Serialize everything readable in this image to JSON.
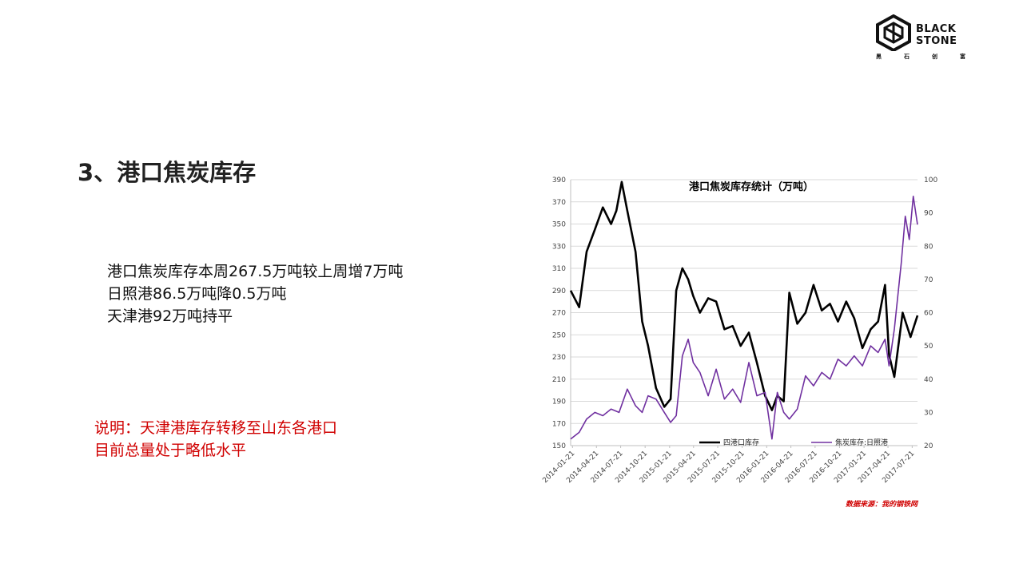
{
  "logo": {
    "icon": "hexagon-logo-icon",
    "line1": "BLACK",
    "line2": "STONE",
    "sub": [
      "黑",
      "石",
      "创",
      "富"
    ]
  },
  "slide": {
    "title": "3、港口焦炭库存",
    "summary_lines": [
      "港口焦炭库存本周267.5万吨较上周增7万吨",
      "日照港86.5万吨降0.5万吨",
      "天津港92万吨持平"
    ],
    "note_lines": [
      "说明：天津港库存转移至山东各港口",
      "目前总量处于略低水平"
    ],
    "source": "数据来源：我的钢铁网"
  },
  "colors": {
    "series1": "#000000",
    "series2": "#7030a0",
    "note": "#d00000",
    "grid": "#d9d9d9"
  },
  "chart_data": {
    "type": "line",
    "title": "港口焦炭库存统计（万吨）",
    "x_ticks": [
      "2014-01-21",
      "2014-04-21",
      "2014-07-21",
      "2014-10-21",
      "2015-01-21",
      "2015-04-21",
      "2015-07-21",
      "2015-10-21",
      "2016-01-21",
      "2016-04-21",
      "2016-07-21",
      "2016-10-21",
      "2017-01-21",
      "2017-04-21",
      "2017-07-21"
    ],
    "y_left": {
      "min": 150,
      "max": 390,
      "ticks": [
        150,
        170,
        190,
        210,
        230,
        250,
        270,
        290,
        310,
        330,
        350,
        370,
        390
      ]
    },
    "y_right": {
      "min": 20,
      "max": 100,
      "ticks": [
        20,
        30,
        40,
        50,
        60,
        70,
        80,
        90,
        100
      ]
    },
    "grid": true,
    "legend_position": "bottom-inside",
    "series": [
      {
        "name": "四港口库存",
        "axis": "left",
        "color": "#000000",
        "x": [
          "2014-01-14",
          "2014-02-15",
          "2014-03-15",
          "2014-04-15",
          "2014-05-15",
          "2014-06-15",
          "2014-07-05",
          "2014-07-25",
          "2014-08-15",
          "2014-09-15",
          "2014-10-10",
          "2014-11-01",
          "2014-12-01",
          "2015-01-01",
          "2015-01-25",
          "2015-02-15",
          "2015-03-10",
          "2015-04-01",
          "2015-04-20",
          "2015-05-15",
          "2015-06-15",
          "2015-07-15",
          "2015-08-15",
          "2015-09-15",
          "2015-10-15",
          "2015-11-15",
          "2015-12-15",
          "2016-01-15",
          "2016-02-10",
          "2016-03-01",
          "2016-03-25",
          "2016-04-15",
          "2016-05-15",
          "2016-06-15",
          "2016-07-15",
          "2016-08-15",
          "2016-09-15",
          "2016-10-15",
          "2016-11-15",
          "2016-12-15",
          "2017-01-15",
          "2017-02-15",
          "2017-03-15",
          "2017-04-10",
          "2017-04-25",
          "2017-05-15",
          "2017-06-15",
          "2017-07-15",
          "2017-08-10"
        ],
        "values": [
          290,
          275,
          325,
          345,
          365,
          350,
          362,
          388,
          362,
          325,
          262,
          240,
          202,
          185,
          192,
          290,
          310,
          300,
          285,
          270,
          283,
          280,
          255,
          258,
          240,
          252,
          225,
          195,
          182,
          195,
          190,
          288,
          260,
          270,
          295,
          272,
          278,
          262,
          280,
          265,
          238,
          255,
          262,
          295,
          232,
          212,
          270,
          248,
          267.5
        ]
      },
      {
        "name": "焦炭库存:日照港",
        "axis": "right",
        "color": "#7030a0",
        "x": [
          "2014-01-14",
          "2014-02-15",
          "2014-03-15",
          "2014-04-15",
          "2014-05-15",
          "2014-06-15",
          "2014-07-15",
          "2014-08-15",
          "2014-09-15",
          "2014-10-10",
          "2014-11-01",
          "2014-12-01",
          "2015-01-01",
          "2015-01-25",
          "2015-02-15",
          "2015-03-10",
          "2015-04-01",
          "2015-04-20",
          "2015-05-15",
          "2015-06-15",
          "2015-07-15",
          "2015-08-15",
          "2015-09-15",
          "2015-10-15",
          "2015-11-15",
          "2015-12-15",
          "2016-01-15",
          "2016-02-10",
          "2016-03-01",
          "2016-03-25",
          "2016-04-15",
          "2016-05-15",
          "2016-06-15",
          "2016-07-15",
          "2016-08-15",
          "2016-09-15",
          "2016-10-15",
          "2016-11-15",
          "2016-12-15",
          "2017-01-15",
          "2017-02-15",
          "2017-03-15",
          "2017-04-10",
          "2017-04-25",
          "2017-05-15",
          "2017-06-10",
          "2017-06-25",
          "2017-07-10",
          "2017-07-25",
          "2017-08-10"
        ],
        "values": [
          22,
          24,
          28,
          30,
          29,
          31,
          30,
          37,
          32,
          30,
          35,
          34,
          30,
          27,
          29,
          47,
          52,
          45,
          42,
          35,
          43,
          34,
          37,
          33,
          45,
          35,
          36,
          22,
          36,
          30,
          28,
          31,
          41,
          38,
          42,
          40,
          46,
          44,
          47,
          44,
          50,
          48,
          52,
          44,
          55,
          75,
          89,
          82,
          95,
          86.5
        ]
      }
    ]
  }
}
